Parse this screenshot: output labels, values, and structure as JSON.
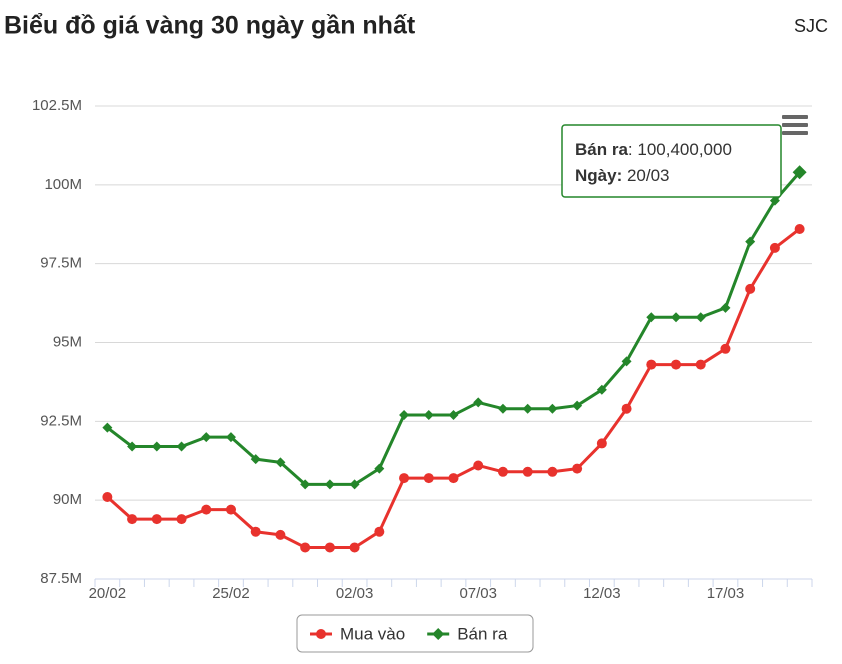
{
  "chart_data": {
    "type": "line",
    "title": "Biểu đồ giá vàng 30 ngày gần nhất",
    "subtitle": "SJC",
    "categories": [
      "20/02",
      null,
      null,
      null,
      null,
      "25/02",
      null,
      null,
      null,
      null,
      "02/03",
      null,
      null,
      null,
      null,
      "07/03",
      null,
      null,
      null,
      null,
      "12/03",
      null,
      null,
      null,
      null,
      "17/03",
      null,
      null,
      null
    ],
    "series": [
      {
        "name": "Mua vào",
        "color": "#e8322d",
        "marker": "circle",
        "values": [
          90.1,
          89.4,
          89.4,
          89.4,
          89.7,
          89.7,
          89.0,
          88.9,
          88.5,
          88.5,
          88.5,
          89.0,
          90.7,
          90.7,
          90.7,
          91.1,
          90.9,
          90.9,
          90.9,
          91.0,
          91.8,
          92.9,
          94.3,
          94.3,
          94.3,
          94.8,
          96.7,
          98.0,
          98.6
        ]
      },
      {
        "name": "Bán ra",
        "color": "#24862a",
        "marker": "diamond",
        "values": [
          92.3,
          91.7,
          91.7,
          91.7,
          92.0,
          92.0,
          91.3,
          91.2,
          90.5,
          90.5,
          90.5,
          91.0,
          92.7,
          92.7,
          92.7,
          93.1,
          92.9,
          92.9,
          92.9,
          93.0,
          93.5,
          94.4,
          95.8,
          95.8,
          95.8,
          96.1,
          98.2,
          99.5,
          100.4
        ]
      }
    ],
    "ylim": [
      87.5,
      102.5
    ],
    "yticks": [
      {
        "value": 87.5,
        "label": "87.5M"
      },
      {
        "value": 90,
        "label": "90M"
      },
      {
        "value": 92.5,
        "label": "92.5M"
      },
      {
        "value": 95,
        "label": "95M"
      },
      {
        "value": 97.5,
        "label": "97.5M"
      },
      {
        "value": 100,
        "label": "100M"
      },
      {
        "value": 102.5,
        "label": "102.5M"
      }
    ],
    "grid": true,
    "legend": "bottom",
    "tooltip": {
      "label": "Bán ra",
      "value": ": 100,400,000",
      "date_label": "Ngày:",
      "date": " 20/03"
    }
  }
}
